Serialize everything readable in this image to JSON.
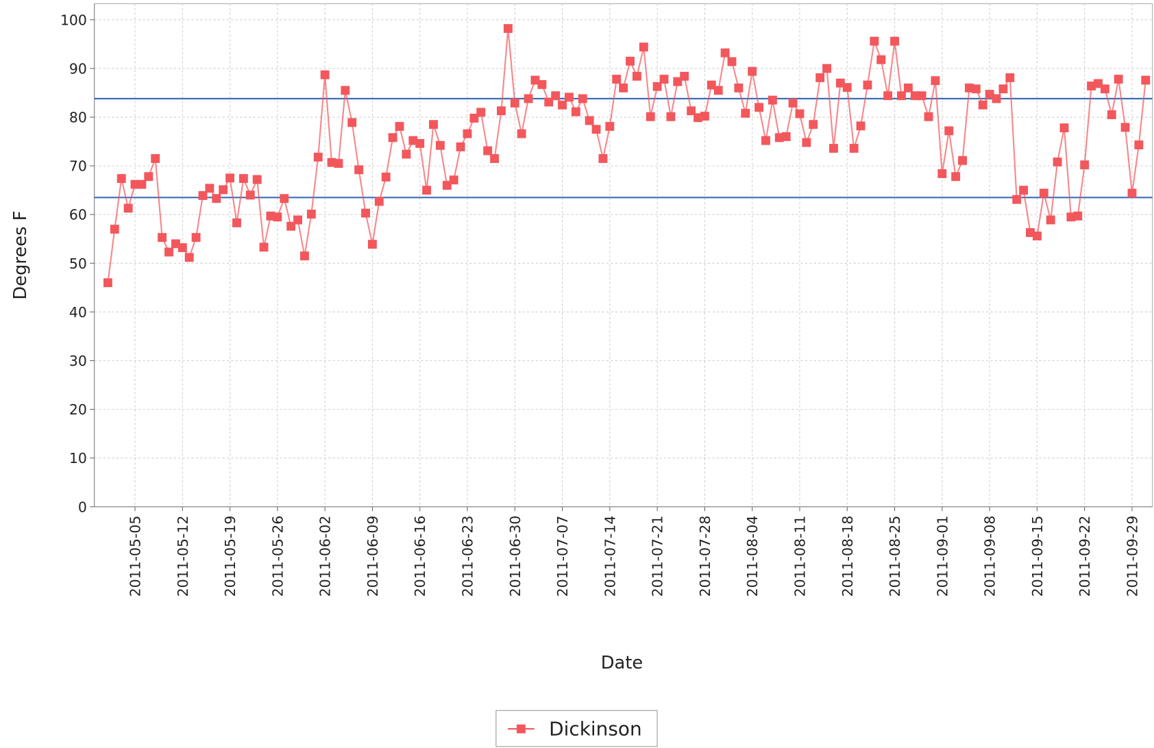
{
  "chart_data": {
    "type": "line",
    "x_label": "Date",
    "y_label": "Degrees F",
    "x": [
      "2011-05-01",
      "2011-05-02",
      "2011-05-03",
      "2011-05-04",
      "2011-05-05",
      "2011-05-06",
      "2011-05-07",
      "2011-05-08",
      "2011-05-09",
      "2011-05-10",
      "2011-05-11",
      "2011-05-12",
      "2011-05-13",
      "2011-05-14",
      "2011-05-15",
      "2011-05-16",
      "2011-05-17",
      "2011-05-18",
      "2011-05-19",
      "2011-05-20",
      "2011-05-21",
      "2011-05-22",
      "2011-05-23",
      "2011-05-24",
      "2011-05-25",
      "2011-05-26",
      "2011-05-27",
      "2011-05-28",
      "2011-05-29",
      "2011-05-30",
      "2011-05-31",
      "2011-06-01",
      "2011-06-02",
      "2011-06-03",
      "2011-06-04",
      "2011-06-05",
      "2011-06-06",
      "2011-06-07",
      "2011-06-08",
      "2011-06-09",
      "2011-06-10",
      "2011-06-11",
      "2011-06-12",
      "2011-06-13",
      "2011-06-14",
      "2011-06-15",
      "2011-06-16",
      "2011-06-17",
      "2011-06-18",
      "2011-06-19",
      "2011-06-20",
      "2011-06-21",
      "2011-06-22",
      "2011-06-23",
      "2011-06-24",
      "2011-06-25",
      "2011-06-26",
      "2011-06-27",
      "2011-06-28",
      "2011-06-29",
      "2011-06-30",
      "2011-07-01",
      "2011-07-02",
      "2011-07-03",
      "2011-07-04",
      "2011-07-05",
      "2011-07-06",
      "2011-07-07",
      "2011-07-08",
      "2011-07-09",
      "2011-07-10",
      "2011-07-11",
      "2011-07-12",
      "2011-07-13",
      "2011-07-14",
      "2011-07-15",
      "2011-07-16",
      "2011-07-17",
      "2011-07-18",
      "2011-07-19",
      "2011-07-20",
      "2011-07-21",
      "2011-07-22",
      "2011-07-23",
      "2011-07-24",
      "2011-07-25",
      "2011-07-26",
      "2011-07-27",
      "2011-07-28",
      "2011-07-29",
      "2011-07-30",
      "2011-07-31",
      "2011-08-01",
      "2011-08-02",
      "2011-08-03",
      "2011-08-04",
      "2011-08-05",
      "2011-08-06",
      "2011-08-07",
      "2011-08-08",
      "2011-08-09",
      "2011-08-10",
      "2011-08-11",
      "2011-08-12",
      "2011-08-13",
      "2011-08-14",
      "2011-08-15",
      "2011-08-16",
      "2011-08-17",
      "2011-08-18",
      "2011-08-19",
      "2011-08-20",
      "2011-08-21",
      "2011-08-22",
      "2011-08-23",
      "2011-08-24",
      "2011-08-25",
      "2011-08-26",
      "2011-08-27",
      "2011-08-28",
      "2011-08-29",
      "2011-08-30",
      "2011-08-31",
      "2011-09-01",
      "2011-09-02",
      "2011-09-03",
      "2011-09-04",
      "2011-09-05",
      "2011-09-06",
      "2011-09-07",
      "2011-09-08",
      "2011-09-09",
      "2011-09-10",
      "2011-09-11",
      "2011-09-12",
      "2011-09-13",
      "2011-09-14",
      "2011-09-15",
      "2011-09-16",
      "2011-09-17",
      "2011-09-18",
      "2011-09-19",
      "2011-09-20",
      "2011-09-21",
      "2011-09-22",
      "2011-09-23",
      "2011-09-24",
      "2011-09-25",
      "2011-09-26",
      "2011-09-27",
      "2011-09-28",
      "2011-09-29",
      "2011-09-30",
      "2011-10-01"
    ],
    "series": [
      {
        "name": "Dickinson",
        "color": "#f2575c",
        "values": [
          46,
          57,
          67.4,
          61.3,
          66.2,
          66.2,
          67.8,
          71.5,
          55.3,
          52.3,
          54,
          53.2,
          51.2,
          55.3,
          63.9,
          65.4,
          63.3,
          65.1,
          67.5,
          58.3,
          67.4,
          64,
          67.2,
          53.3,
          59.7,
          59.5,
          63.3,
          57.6,
          58.9,
          51.5,
          60.1,
          71.8,
          88.7,
          70.7,
          70.5,
          85.5,
          78.9,
          69.2,
          60.3,
          53.9,
          62.7,
          67.7,
          75.8,
          78.1,
          72.4,
          75.2,
          74.6,
          65,
          78.5,
          74.2,
          66,
          67.1,
          73.9,
          76.6,
          79.8,
          81,
          73.1,
          71.5,
          81.3,
          98.2,
          82.9,
          76.6,
          83.8,
          87.6,
          86.7,
          83.1,
          84.4,
          82.5,
          84.1,
          81.1,
          83.8,
          79.3,
          77.5,
          71.5,
          78.1,
          87.8,
          86,
          91.5,
          88.4,
          94.4,
          80.1,
          86.3,
          87.8,
          80.1,
          87.3,
          88.4,
          81.3,
          79.9,
          80.2,
          86.6,
          85.5,
          93.2,
          91.4,
          86,
          80.8,
          89.4,
          82,
          75.2,
          83.5,
          75.8,
          76,
          82.9,
          80.7,
          74.8,
          78.5,
          88.1,
          90,
          73.6,
          87,
          86.1,
          73.6,
          78.2,
          86.6,
          95.6,
          91.8,
          84.4,
          95.6,
          84.4,
          86,
          84.4,
          84.4,
          80.1,
          87.5,
          68.4,
          77.2,
          67.8,
          71.1,
          86,
          85.8,
          82.5,
          84.7,
          83.8,
          85.8,
          88.1,
          63.1,
          65,
          56.3,
          55.6,
          64.4,
          58.9,
          70.8,
          77.8,
          59.5,
          59.7,
          70.2,
          86.4,
          86.9,
          85.8,
          80.5,
          87.8,
          77.9,
          64.4,
          74.3,
          87.6
        ]
      }
    ],
    "reference_lines": [
      83.8,
      63.5
    ],
    "reference_color": "#3b6db3",
    "xlim": [
      "2011-04-29",
      "2011-10-02"
    ],
    "xticks": [
      "2011-05-05",
      "2011-05-12",
      "2011-05-19",
      "2011-05-26",
      "2011-06-02",
      "2011-06-09",
      "2011-06-16",
      "2011-06-23",
      "2011-06-30",
      "2011-07-07",
      "2011-07-14",
      "2011-07-21",
      "2011-07-28",
      "2011-08-04",
      "2011-08-11",
      "2011-08-18",
      "2011-08-25",
      "2011-09-01",
      "2011-09-08",
      "2011-09-15",
      "2011-09-22",
      "2011-09-29"
    ],
    "ylim": [
      0,
      103.3
    ],
    "yticks": [
      0,
      10,
      20,
      30,
      40,
      50,
      60,
      70,
      80,
      90,
      100
    ],
    "grid": true,
    "legend": "bottom"
  }
}
